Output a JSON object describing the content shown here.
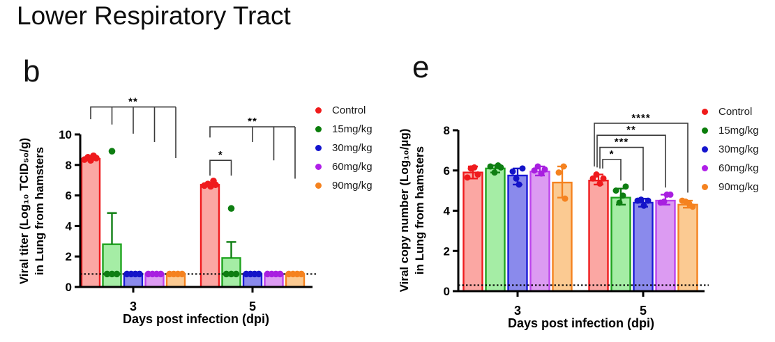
{
  "page": {
    "title": "Lower Respiratory Tract",
    "background": "#ffffff"
  },
  "legend": {
    "items": [
      {
        "label": "Control",
        "color": "#F01B1B"
      },
      {
        "label": "15mg/kg",
        "color": "#0B7D0B"
      },
      {
        "label": "30mg/kg",
        "color": "#1414CE"
      },
      {
        "label": "60mg/kg",
        "color": "#B01FE8"
      },
      {
        "label": "90mg/kg",
        "color": "#F5821F"
      }
    ]
  },
  "chart_data": [
    {
      "id": "b",
      "panel_label": "b",
      "type": "bar",
      "xlabel": "Days post infection (dpi)",
      "ylabel_line1": "Viral titer (Log₁₀ TCID₅₀/g)",
      "ylabel_line2": "in Lung from hamsters",
      "categories": [
        "3",
        "5"
      ],
      "ylim": [
        0,
        10
      ],
      "yticks": [
        0,
        2,
        4,
        6,
        8,
        10
      ],
      "grid": false,
      "legend_position": "right",
      "detection_limit": 0.85,
      "series": [
        {
          "name": "Control",
          "color": "#EF1A1D",
          "dot": "#EF1A1D",
          "fill": "#FBA7A3",
          "values": [
            8.4,
            6.7
          ],
          "err_lo": [
            8.4,
            6.7
          ],
          "err_hi": [
            8.4,
            6.7
          ],
          "points": [
            [
              [
                -9,
                8.35
              ],
              [
                -4,
                8.5
              ],
              [
                0,
                8.3
              ],
              [
                4,
                8.6
              ],
              [
                8,
                8.45
              ]
            ],
            [
              [
                -8,
                6.65
              ],
              [
                -3,
                6.75
              ],
              [
                1,
                6.6
              ],
              [
                5,
                6.95
              ],
              [
                8,
                6.7
              ]
            ]
          ]
        },
        {
          "name": "15mg/kg",
          "color": "#1FA41F",
          "dot": "#0E7E12",
          "fill": "#A5EDA5",
          "values": [
            2.8,
            1.9
          ],
          "err_lo": [
            2.8,
            1.9
          ],
          "err_hi": [
            4.85,
            2.95
          ],
          "points": [
            [
              [
                0,
                8.9
              ],
              [
                -7,
                0.85
              ],
              [
                0,
                0.85
              ],
              [
                7,
                0.85
              ]
            ],
            [
              [
                0,
                5.15
              ],
              [
                -7,
                0.85
              ],
              [
                0,
                0.85
              ],
              [
                7,
                0.85
              ]
            ]
          ]
        },
        {
          "name": "30mg/kg",
          "color": "#1A1AD6",
          "dot": "#1414C8",
          "fill": "#8A8AEC",
          "values": [
            0.85,
            0.85
          ],
          "err_lo": [
            0.85,
            0.85
          ],
          "err_hi": [
            0.85,
            0.85
          ],
          "points": [
            [
              [
                -9,
                0.85
              ],
              [
                -3,
                0.85
              ],
              [
                3,
                0.85
              ],
              [
                9,
                0.85
              ]
            ],
            [
              [
                -9,
                0.85
              ],
              [
                -3,
                0.85
              ],
              [
                3,
                0.85
              ],
              [
                9,
                0.85
              ]
            ]
          ]
        },
        {
          "name": "60mg/kg",
          "color": "#BC43EC",
          "dot": "#A81FE0",
          "fill": "#DC9BF2",
          "values": [
            0.85,
            0.85
          ],
          "err_lo": [
            0.85,
            0.85
          ],
          "err_hi": [
            0.85,
            0.85
          ],
          "points": [
            [
              [
                -9,
                0.85
              ],
              [
                -3,
                0.85
              ],
              [
                3,
                0.85
              ],
              [
                9,
                0.85
              ]
            ],
            [
              [
                -9,
                0.85
              ],
              [
                -3,
                0.85
              ],
              [
                3,
                0.85
              ],
              [
                9,
                0.85
              ]
            ]
          ]
        },
        {
          "name": "90mg/kg",
          "color": "#F5821F",
          "dot": "#F5821F",
          "fill": "#FBCA92",
          "values": [
            0.85,
            0.85
          ],
          "err_lo": [
            0.85,
            0.85
          ],
          "err_hi": [
            0.85,
            0.85
          ],
          "points": [
            [
              [
                -9,
                0.85
              ],
              [
                -3,
                0.85
              ],
              [
                3,
                0.85
              ],
              [
                9,
                0.85
              ]
            ],
            [
              [
                -9,
                0.85
              ],
              [
                -3,
                0.85
              ],
              [
                3,
                0.85
              ],
              [
                9,
                0.85
              ]
            ]
          ]
        }
      ],
      "significance": [
        {
          "type": "comb",
          "label": "**",
          "cat": 0,
          "from": 0,
          "from_drop": 11.0,
          "y": 11.8,
          "targets": [
            {
              "s": 1,
              "to": 10.65
            },
            {
              "s": 2,
              "to": 10.05
            },
            {
              "s": 3,
              "to": 9.5
            },
            {
              "s": 4,
              "to": 8.45
            }
          ]
        },
        {
          "type": "pair",
          "label": "*",
          "cat": 1,
          "a": 0,
          "b": 1,
          "y": 8.3,
          "a_to": 7.3,
          "b_to": 7.3,
          "ax_off": 0
        },
        {
          "type": "comb",
          "label": "**",
          "cat": 1,
          "from": 0,
          "from_drop": 9.8,
          "y": 10.5,
          "targets": [
            {
              "s": 2,
              "to": 9.5
            },
            {
              "s": 3,
              "to": 8.3
            },
            {
              "s": 4,
              "to": 7.1
            }
          ]
        }
      ]
    },
    {
      "id": "e",
      "panel_label": "e",
      "type": "bar",
      "xlabel": "Days post infection (dpi)",
      "ylabel_line1": "Viral copy number (Log₁₀/µg)",
      "ylabel_line2": "in Lung from hamsters",
      "categories": [
        "3",
        "5"
      ],
      "ylim": [
        0,
        8
      ],
      "yticks": [
        0,
        2,
        4,
        6,
        8
      ],
      "grid": false,
      "legend_position": "right",
      "detection_limit": 0.3,
      "series": [
        {
          "name": "Control",
          "color": "#EF1A1D",
          "dot": "#EF1A1D",
          "fill": "#FBA7A3",
          "values": [
            5.9,
            5.5
          ],
          "err_lo": [
            5.6,
            5.3
          ],
          "err_hi": [
            6.2,
            5.8
          ],
          "points": [
            [
              [
                -8,
                5.65
              ],
              [
                -3,
                6.1
              ],
              [
                2,
                6.15
              ],
              [
                7,
                5.8
              ]
            ],
            [
              [
                -8,
                5.6
              ],
              [
                -3,
                5.8
              ],
              [
                2,
                5.35
              ],
              [
                7,
                5.6
              ]
            ]
          ]
        },
        {
          "name": "15mg/kg",
          "color": "#1FA41F",
          "dot": "#0E7E12",
          "fill": "#A5EDA5",
          "values": [
            6.1,
            4.65
          ],
          "err_lo": [
            5.9,
            4.3
          ],
          "err_hi": [
            6.25,
            5.1
          ],
          "points": [
            [
              [
                -7,
                6.2
              ],
              [
                -1,
                5.9
              ],
              [
                4,
                6.25
              ],
              [
                8,
                6.15
              ]
            ],
            [
              [
                -7,
                5.0
              ],
              [
                -2,
                4.4
              ],
              [
                3,
                4.75
              ],
              [
                7,
                5.2
              ]
            ]
          ]
        },
        {
          "name": "30mg/kg",
          "color": "#1A1AD6",
          "dot": "#1414C8",
          "fill": "#8A8AEC",
          "values": [
            5.75,
            4.4
          ],
          "err_lo": [
            5.3,
            4.2
          ],
          "err_hi": [
            6.1,
            4.6
          ],
          "points": [
            [
              [
                -7,
                5.95
              ],
              [
                -2,
                5.6
              ],
              [
                2,
                5.3
              ],
              [
                7,
                6.1
              ]
            ],
            [
              [
                -8,
                4.5
              ],
              [
                -3,
                4.55
              ],
              [
                1,
                4.25
              ],
              [
                7,
                4.5
              ]
            ]
          ]
        },
        {
          "name": "60mg/kg",
          "color": "#BC43EC",
          "dot": "#A81FE0",
          "fill": "#DC9BF2",
          "values": [
            5.95,
            4.5
          ],
          "err_lo": [
            5.75,
            4.3
          ],
          "err_hi": [
            6.2,
            4.8
          ],
          "points": [
            [
              [
                -8,
                6.0
              ],
              [
                -3,
                6.2
              ],
              [
                2,
                5.85
              ],
              [
                7,
                6.05
              ]
            ],
            [
              [
                -7,
                4.4
              ],
              [
                -2,
                4.45
              ],
              [
                2,
                4.8
              ],
              [
                7,
                4.8
              ]
            ]
          ]
        },
        {
          "name": "90mg/kg",
          "color": "#F5821F",
          "dot": "#F5821F",
          "fill": "#FBCA92",
          "values": [
            5.4,
            4.3
          ],
          "err_lo": [
            4.65,
            4.15
          ],
          "err_hi": [
            6.2,
            4.5
          ],
          "points": [
            [
              [
                -5,
                5.9
              ],
              [
                2,
                6.2
              ],
              [
                4,
                4.6
              ]
            ],
            [
              [
                -8,
                4.5
              ],
              [
                -3,
                4.45
              ],
              [
                2,
                4.35
              ],
              [
                7,
                4.2
              ]
            ]
          ]
        }
      ],
      "significance": [
        {
          "type": "pair",
          "label": "*",
          "cat": 1,
          "a": 0,
          "b": 1,
          "y": 6.55,
          "a_to": 6.1,
          "b_to": 5.5,
          "ax_off": 6
        },
        {
          "type": "pair",
          "label": "***",
          "cat": 1,
          "a": 0,
          "b": 2,
          "y": 7.15,
          "a_to": 6.1,
          "b_to": 5.0,
          "ax_off": 2
        },
        {
          "type": "pair",
          "label": "**",
          "cat": 1,
          "a": 0,
          "b": 3,
          "y": 7.75,
          "a_to": 6.15,
          "b_to": 5.15,
          "ax_off": -2
        },
        {
          "type": "pair",
          "label": "****",
          "cat": 1,
          "a": 0,
          "b": 4,
          "y": 8.35,
          "a_to": 6.2,
          "b_to": 4.9,
          "ax_off": -6
        }
      ]
    }
  ]
}
